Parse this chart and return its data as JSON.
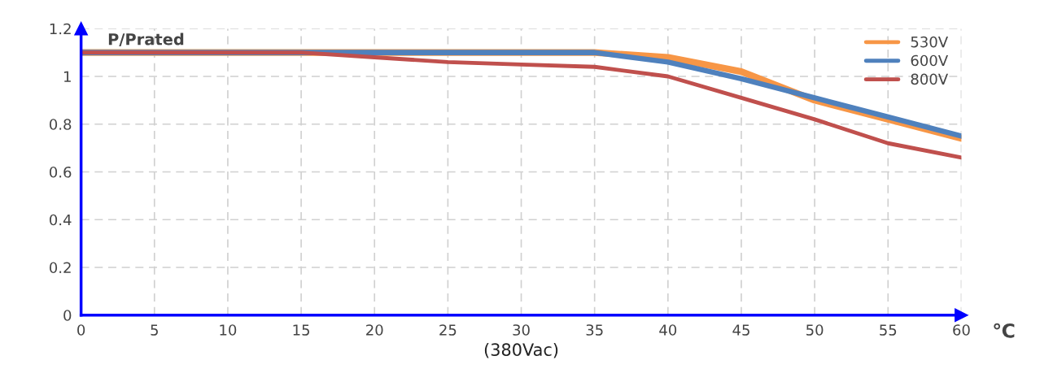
{
  "chart_data": {
    "type": "line",
    "ylabel": "P/Prated",
    "xlabel": "(380Vac)",
    "annotations": [
      "℃"
    ],
    "xlim": [
      0,
      60
    ],
    "xticks": [
      0,
      5,
      10,
      15,
      20,
      25,
      30,
      35,
      40,
      45,
      50,
      55,
      60
    ],
    "ylim": [
      0,
      1.2
    ],
    "yticks": [
      0,
      0.2,
      0.4,
      0.6,
      0.8,
      1,
      1.2
    ],
    "grid": true,
    "legend": "top right",
    "marker": "none",
    "line_style": "solid",
    "series": [
      {
        "name": "530V",
        "color": "#f79646",
        "x": [
          0,
          15,
          35,
          40,
          45,
          50,
          55,
          60
        ],
        "values": [
          1.1,
          1.1,
          1.1,
          1.08,
          1.02,
          0.9,
          0.82,
          0.74
        ]
      },
      {
        "name": "600V",
        "color": "#4f81bd",
        "x": [
          0,
          15,
          35,
          40,
          45,
          50,
          55,
          60
        ],
        "values": [
          1.1,
          1.1,
          1.1,
          1.06,
          0.99,
          0.91,
          0.83,
          0.75
        ]
      },
      {
        "name": "800V",
        "color": "#c0504d",
        "x": [
          0,
          15,
          20,
          25,
          30,
          35,
          40,
          45,
          50,
          55,
          60
        ],
        "values": [
          1.1,
          1.1,
          1.08,
          1.06,
          1.05,
          1.04,
          1.0,
          0.91,
          0.82,
          0.72,
          0.66
        ]
      }
    ]
  }
}
